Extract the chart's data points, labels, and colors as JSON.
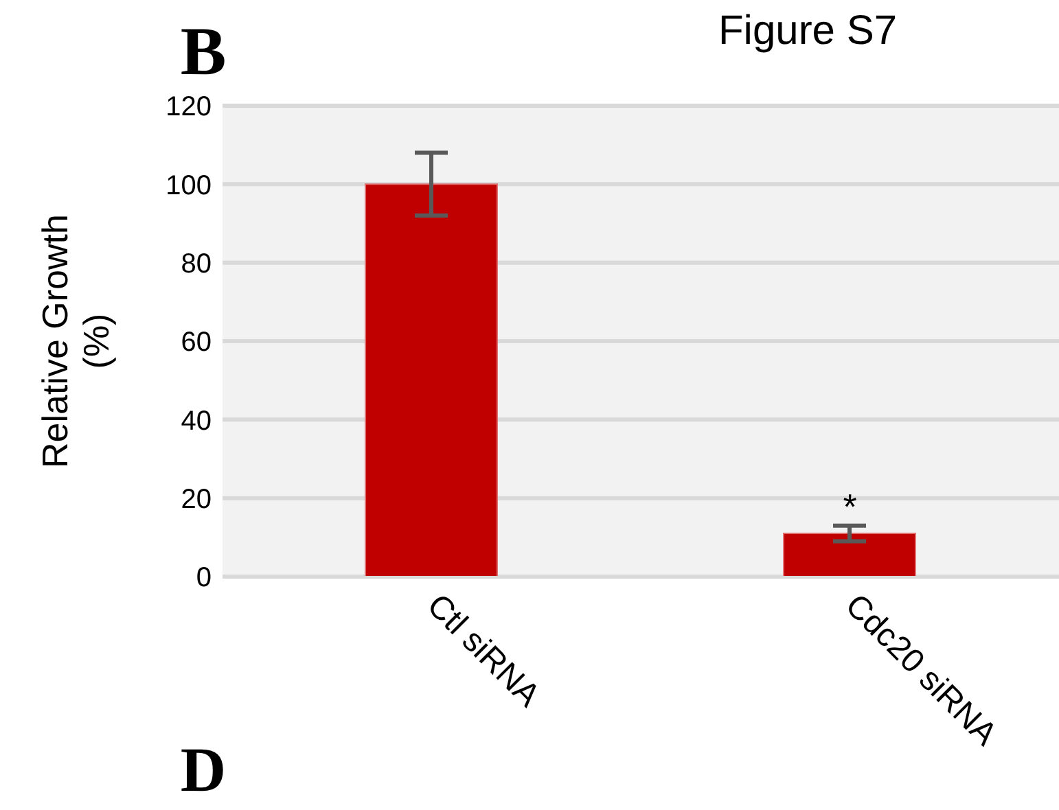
{
  "chart_data": {
    "type": "bar",
    "ylabel": "Relative Growth\n(%)",
    "categories": [
      "Ctl siRNA",
      "Cdc20 siRNA"
    ],
    "values": [
      100,
      11
    ],
    "errors": [
      8,
      2
    ],
    "color": "#c00000",
    "ylim": [
      0,
      120
    ],
    "yticks": [
      0,
      20,
      40,
      60,
      80,
      100,
      120
    ],
    "grid": "y",
    "annotations": [
      "Figure S7",
      "B",
      "D",
      {
        "text": "*",
        "x": "Cdc20 siRNA",
        "y": 13
      }
    ]
  }
}
